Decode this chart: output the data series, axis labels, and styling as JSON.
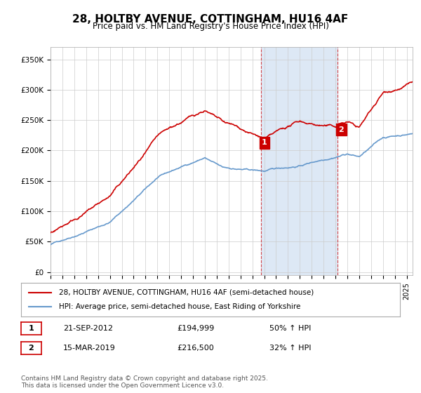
{
  "title": "28, HOLTBY AVENUE, COTTINGHAM, HU16 4AF",
  "subtitle": "Price paid vs. HM Land Registry's House Price Index (HPI)",
  "yticks": [
    0,
    50000,
    100000,
    150000,
    200000,
    250000,
    300000,
    350000
  ],
  "ylim": [
    -5000,
    370000
  ],
  "xlim_start": 1995.0,
  "xlim_end": 2025.5,
  "sale1_date": 2012.72,
  "sale1_price": 194999,
  "sale1_label": "1",
  "sale2_date": 2019.2,
  "sale2_price": 216500,
  "sale2_label": "2",
  "property_color": "#cc0000",
  "hpi_color": "#6699cc",
  "sale_marker_color": "#cc0000",
  "vertical_band_color": "#dde8f5",
  "legend_property": "28, HOLTBY AVENUE, COTTINGHAM, HU16 4AF (semi-detached house)",
  "legend_hpi": "HPI: Average price, semi-detached house, East Riding of Yorkshire",
  "annotation1_date": "21-SEP-2012",
  "annotation1_price": "£194,999",
  "annotation1_hpi": "50% ↑ HPI",
  "annotation2_date": "15-MAR-2019",
  "annotation2_price": "£216,500",
  "annotation2_hpi": "32% ↑ HPI",
  "footer": "Contains HM Land Registry data © Crown copyright and database right 2025.\nThis data is licensed under the Open Government Licence v3.0.",
  "background_color": "#ffffff",
  "grid_color": "#cccccc"
}
